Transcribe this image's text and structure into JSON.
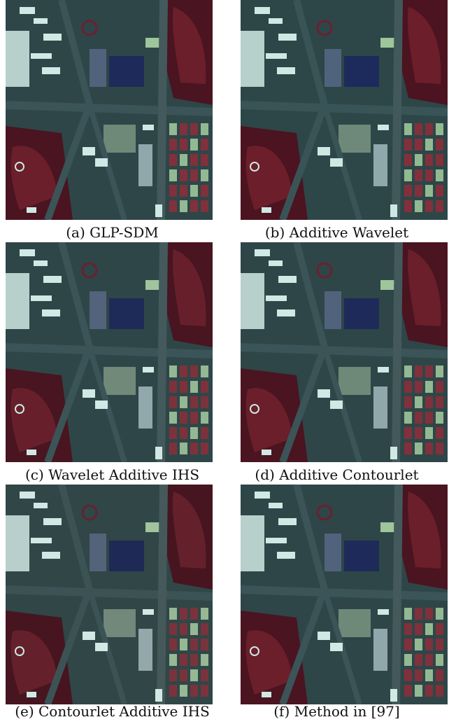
{
  "figure": {
    "panels": [
      {
        "caption": "(a) GLP-SDM"
      },
      {
        "caption": "(b) Additive Wavelet"
      },
      {
        "caption": "(c) Wavelet Additive IHS"
      },
      {
        "caption": "(d) Additive Contourlet"
      },
      {
        "caption": "(e) Contourlet Additive IHS"
      },
      {
        "caption": "(f) Method in [97]"
      }
    ],
    "colors": {
      "ground": "#2e4648",
      "road": "#3a5457",
      "vegetation": "#6a1f2b",
      "vegetation_dark": "#4a1420",
      "roof_white": "#cfe9e4",
      "roof_blue": "#1d2a5a",
      "field": "#8a2f3a",
      "pale_green": "#9fc59a"
    }
  }
}
